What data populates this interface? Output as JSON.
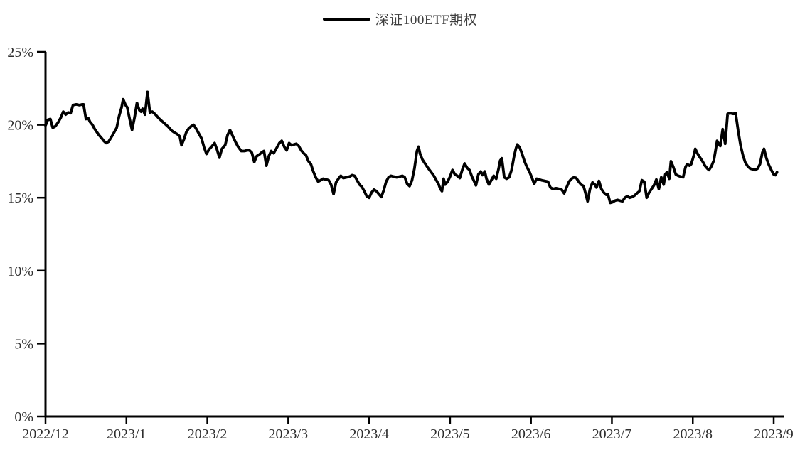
{
  "legend": {
    "label": "深证100ETF期权"
  },
  "colors": {
    "background": "#ffffff",
    "axis": "#000000",
    "line": "#000000",
    "label_text": "#2e2e2e",
    "legend_text": "#3f3f3f"
  },
  "chart_data": {
    "type": "line",
    "title": "",
    "xlabel": "",
    "ylabel": "",
    "y_unit": "percent",
    "ylim": [
      0,
      25
    ],
    "y_tick_labels": [
      "0%",
      "5%",
      "10%",
      "15%",
      "20%",
      "25%"
    ],
    "y_tick_values": [
      0,
      5,
      10,
      15,
      20,
      25
    ],
    "x_tick_labels": [
      "2022/12",
      "2023/1",
      "2023/2",
      "2023/3",
      "2023/4",
      "2023/5",
      "2023/6",
      "2023/7",
      "2023/8",
      "2023/9"
    ],
    "x_axis_note": "x of each point = months after the 2022/12 tick (0 = 2022/12, 9 = 2023/9), daily implied-volatility style series",
    "grid": false,
    "legend_position": "top-center",
    "series": [
      {
        "name": "深证100ETF期权",
        "color": "#000000",
        "points": [
          [
            0.0,
            19.95
          ],
          [
            0.03,
            20.35
          ],
          [
            0.06,
            20.4
          ],
          [
            0.09,
            19.8
          ],
          [
            0.12,
            19.9
          ],
          [
            0.16,
            20.2
          ],
          [
            0.19,
            20.5
          ],
          [
            0.22,
            20.9
          ],
          [
            0.25,
            20.7
          ],
          [
            0.28,
            20.85
          ],
          [
            0.31,
            20.8
          ],
          [
            0.34,
            21.35
          ],
          [
            0.38,
            21.4
          ],
          [
            0.42,
            21.35
          ],
          [
            0.45,
            21.4
          ],
          [
            0.47,
            21.4
          ],
          [
            0.5,
            20.4
          ],
          [
            0.53,
            20.45
          ],
          [
            0.55,
            20.2
          ],
          [
            0.58,
            20.0
          ],
          [
            0.61,
            19.7
          ],
          [
            0.66,
            19.3
          ],
          [
            0.7,
            19.05
          ],
          [
            0.72,
            18.9
          ],
          [
            0.75,
            18.75
          ],
          [
            0.78,
            18.85
          ],
          [
            0.83,
            19.3
          ],
          [
            0.88,
            19.8
          ],
          [
            0.91,
            20.6
          ],
          [
            0.94,
            21.2
          ],
          [
            0.96,
            21.75
          ],
          [
            0.99,
            21.35
          ],
          [
            1.01,
            21.2
          ],
          [
            1.04,
            20.4
          ],
          [
            1.07,
            19.65
          ],
          [
            1.1,
            20.5
          ],
          [
            1.13,
            21.5
          ],
          [
            1.16,
            21.0
          ],
          [
            1.18,
            20.9
          ],
          [
            1.2,
            21.1
          ],
          [
            1.23,
            20.7
          ],
          [
            1.26,
            22.25
          ],
          [
            1.29,
            20.85
          ],
          [
            1.32,
            20.9
          ],
          [
            1.36,
            20.7
          ],
          [
            1.4,
            20.45
          ],
          [
            1.44,
            20.25
          ],
          [
            1.48,
            20.05
          ],
          [
            1.52,
            19.85
          ],
          [
            1.56,
            19.6
          ],
          [
            1.6,
            19.45
          ],
          [
            1.63,
            19.35
          ],
          [
            1.66,
            19.2
          ],
          [
            1.68,
            18.6
          ],
          [
            1.71,
            19.0
          ],
          [
            1.74,
            19.5
          ],
          [
            1.77,
            19.75
          ],
          [
            1.8,
            19.9
          ],
          [
            1.83,
            20.0
          ],
          [
            1.86,
            19.75
          ],
          [
            1.9,
            19.35
          ],
          [
            1.93,
            19.05
          ],
          [
            1.96,
            18.45
          ],
          [
            1.99,
            18.0
          ],
          [
            2.02,
            18.3
          ],
          [
            2.06,
            18.55
          ],
          [
            2.09,
            18.75
          ],
          [
            2.12,
            18.3
          ],
          [
            2.15,
            17.75
          ],
          [
            2.18,
            18.35
          ],
          [
            2.22,
            18.6
          ],
          [
            2.25,
            19.3
          ],
          [
            2.28,
            19.65
          ],
          [
            2.32,
            19.15
          ],
          [
            2.35,
            18.8
          ],
          [
            2.38,
            18.5
          ],
          [
            2.42,
            18.2
          ],
          [
            2.46,
            18.2
          ],
          [
            2.49,
            18.25
          ],
          [
            2.52,
            18.25
          ],
          [
            2.55,
            18.1
          ],
          [
            2.58,
            17.45
          ],
          [
            2.61,
            17.85
          ],
          [
            2.64,
            17.95
          ],
          [
            2.67,
            18.1
          ],
          [
            2.7,
            18.2
          ],
          [
            2.73,
            17.2
          ],
          [
            2.76,
            17.85
          ],
          [
            2.79,
            18.2
          ],
          [
            2.82,
            18.05
          ],
          [
            2.85,
            18.35
          ],
          [
            2.89,
            18.75
          ],
          [
            2.92,
            18.9
          ],
          [
            2.95,
            18.5
          ],
          [
            2.98,
            18.25
          ],
          [
            3.01,
            18.75
          ],
          [
            3.04,
            18.6
          ],
          [
            3.07,
            18.65
          ],
          [
            3.1,
            18.7
          ],
          [
            3.13,
            18.55
          ],
          [
            3.16,
            18.25
          ],
          [
            3.19,
            18.05
          ],
          [
            3.22,
            17.9
          ],
          [
            3.25,
            17.5
          ],
          [
            3.28,
            17.3
          ],
          [
            3.31,
            16.8
          ],
          [
            3.34,
            16.4
          ],
          [
            3.37,
            16.1
          ],
          [
            3.4,
            16.2
          ],
          [
            3.43,
            16.3
          ],
          [
            3.47,
            16.25
          ],
          [
            3.5,
            16.2
          ],
          [
            3.53,
            15.9
          ],
          [
            3.56,
            15.25
          ],
          [
            3.59,
            16.05
          ],
          [
            3.62,
            16.3
          ],
          [
            3.65,
            16.5
          ],
          [
            3.68,
            16.35
          ],
          [
            3.72,
            16.4
          ],
          [
            3.76,
            16.45
          ],
          [
            3.79,
            16.55
          ],
          [
            3.82,
            16.5
          ],
          [
            3.85,
            16.2
          ],
          [
            3.88,
            15.9
          ],
          [
            3.91,
            15.75
          ],
          [
            3.94,
            15.45
          ],
          [
            3.97,
            15.1
          ],
          [
            4.0,
            15.0
          ],
          [
            4.03,
            15.35
          ],
          [
            4.06,
            15.55
          ],
          [
            4.09,
            15.45
          ],
          [
            4.12,
            15.25
          ],
          [
            4.15,
            15.05
          ],
          [
            4.18,
            15.5
          ],
          [
            4.21,
            16.1
          ],
          [
            4.24,
            16.4
          ],
          [
            4.27,
            16.5
          ],
          [
            4.3,
            16.45
          ],
          [
            4.34,
            16.4
          ],
          [
            4.38,
            16.45
          ],
          [
            4.41,
            16.5
          ],
          [
            4.44,
            16.4
          ],
          [
            4.47,
            15.95
          ],
          [
            4.5,
            15.8
          ],
          [
            4.53,
            16.2
          ],
          [
            4.56,
            17.0
          ],
          [
            4.59,
            18.2
          ],
          [
            4.61,
            18.5
          ],
          [
            4.63,
            18.0
          ],
          [
            4.66,
            17.6
          ],
          [
            4.69,
            17.35
          ],
          [
            4.72,
            17.1
          ],
          [
            4.76,
            16.8
          ],
          [
            4.8,
            16.5
          ],
          [
            4.83,
            16.2
          ],
          [
            4.86,
            15.9
          ],
          [
            4.88,
            15.6
          ],
          [
            4.9,
            15.45
          ],
          [
            4.92,
            16.3
          ],
          [
            4.94,
            15.9
          ],
          [
            4.97,
            16.1
          ],
          [
            5.0,
            16.45
          ],
          [
            5.03,
            16.9
          ],
          [
            5.06,
            16.6
          ],
          [
            5.09,
            16.5
          ],
          [
            5.12,
            16.35
          ],
          [
            5.15,
            16.9
          ],
          [
            5.18,
            17.35
          ],
          [
            5.21,
            17.05
          ],
          [
            5.24,
            16.9
          ],
          [
            5.27,
            16.45
          ],
          [
            5.3,
            16.1
          ],
          [
            5.32,
            15.85
          ],
          [
            5.35,
            16.6
          ],
          [
            5.38,
            16.8
          ],
          [
            5.4,
            16.55
          ],
          [
            5.43,
            16.8
          ],
          [
            5.45,
            16.3
          ],
          [
            5.48,
            15.9
          ],
          [
            5.51,
            16.2
          ],
          [
            5.54,
            16.5
          ],
          [
            5.57,
            16.3
          ],
          [
            5.6,
            17.0
          ],
          [
            5.62,
            17.55
          ],
          [
            5.64,
            17.7
          ],
          [
            5.67,
            16.4
          ],
          [
            5.7,
            16.3
          ],
          [
            5.73,
            16.4
          ],
          [
            5.76,
            16.9
          ],
          [
            5.79,
            17.8
          ],
          [
            5.81,
            18.3
          ],
          [
            5.83,
            18.65
          ],
          [
            5.86,
            18.45
          ],
          [
            5.89,
            18.0
          ],
          [
            5.92,
            17.5
          ],
          [
            5.95,
            17.1
          ],
          [
            5.98,
            16.8
          ],
          [
            6.01,
            16.4
          ],
          [
            6.04,
            15.95
          ],
          [
            6.07,
            16.3
          ],
          [
            6.1,
            16.25
          ],
          [
            6.13,
            16.2
          ],
          [
            6.17,
            16.15
          ],
          [
            6.21,
            16.1
          ],
          [
            6.24,
            15.7
          ],
          [
            6.27,
            15.6
          ],
          [
            6.31,
            15.65
          ],
          [
            6.35,
            15.6
          ],
          [
            6.38,
            15.55
          ],
          [
            6.41,
            15.3
          ],
          [
            6.44,
            15.7
          ],
          [
            6.47,
            16.1
          ],
          [
            6.5,
            16.3
          ],
          [
            6.53,
            16.4
          ],
          [
            6.56,
            16.35
          ],
          [
            6.59,
            16.1
          ],
          [
            6.62,
            15.9
          ],
          [
            6.65,
            15.8
          ],
          [
            6.67,
            15.4
          ],
          [
            6.7,
            14.75
          ],
          [
            6.73,
            15.6
          ],
          [
            6.76,
            16.05
          ],
          [
            6.79,
            15.9
          ],
          [
            6.81,
            15.7
          ],
          [
            6.84,
            16.15
          ],
          [
            6.87,
            15.6
          ],
          [
            6.9,
            15.35
          ],
          [
            6.93,
            15.2
          ],
          [
            6.95,
            15.25
          ],
          [
            6.98,
            14.65
          ],
          [
            7.01,
            14.7
          ],
          [
            7.04,
            14.8
          ],
          [
            7.07,
            14.85
          ],
          [
            7.1,
            14.8
          ],
          [
            7.13,
            14.75
          ],
          [
            7.16,
            15.0
          ],
          [
            7.19,
            15.1
          ],
          [
            7.22,
            15.0
          ],
          [
            7.25,
            15.05
          ],
          [
            7.28,
            15.15
          ],
          [
            7.31,
            15.3
          ],
          [
            7.34,
            15.45
          ],
          [
            7.37,
            16.2
          ],
          [
            7.4,
            16.1
          ],
          [
            7.43,
            15.0
          ],
          [
            7.46,
            15.35
          ],
          [
            7.49,
            15.6
          ],
          [
            7.52,
            15.85
          ],
          [
            7.55,
            16.25
          ],
          [
            7.58,
            15.6
          ],
          [
            7.61,
            16.4
          ],
          [
            7.64,
            15.9
          ],
          [
            7.66,
            16.6
          ],
          [
            7.68,
            16.75
          ],
          [
            7.71,
            16.3
          ],
          [
            7.73,
            17.5
          ],
          [
            7.76,
            17.1
          ],
          [
            7.79,
            16.6
          ],
          [
            7.82,
            16.5
          ],
          [
            7.85,
            16.45
          ],
          [
            7.88,
            16.4
          ],
          [
            7.91,
            17.1
          ],
          [
            7.93,
            17.3
          ],
          [
            7.96,
            17.2
          ],
          [
            7.98,
            17.3
          ],
          [
            8.01,
            17.85
          ],
          [
            8.03,
            18.35
          ],
          [
            8.06,
            18.0
          ],
          [
            8.09,
            17.75
          ],
          [
            8.12,
            17.5
          ],
          [
            8.15,
            17.2
          ],
          [
            8.18,
            17.0
          ],
          [
            8.2,
            16.9
          ],
          [
            8.23,
            17.15
          ],
          [
            8.26,
            17.55
          ],
          [
            8.28,
            18.2
          ],
          [
            8.3,
            18.9
          ],
          [
            8.32,
            18.7
          ],
          [
            8.34,
            18.55
          ],
          [
            8.37,
            19.7
          ],
          [
            8.4,
            18.7
          ],
          [
            8.43,
            20.75
          ],
          [
            8.46,
            20.8
          ],
          [
            8.5,
            20.75
          ],
          [
            8.53,
            20.8
          ],
          [
            8.56,
            19.6
          ],
          [
            8.59,
            18.6
          ],
          [
            8.62,
            17.9
          ],
          [
            8.65,
            17.4
          ],
          [
            8.68,
            17.15
          ],
          [
            8.71,
            17.0
          ],
          [
            8.74,
            16.95
          ],
          [
            8.77,
            16.9
          ],
          [
            8.8,
            17.0
          ],
          [
            8.83,
            17.3
          ],
          [
            8.86,
            18.1
          ],
          [
            8.88,
            18.35
          ],
          [
            8.91,
            17.7
          ],
          [
            8.94,
            17.25
          ],
          [
            8.97,
            16.9
          ],
          [
            9.0,
            16.6
          ],
          [
            9.02,
            16.55
          ],
          [
            9.04,
            16.75
          ]
        ]
      }
    ]
  }
}
